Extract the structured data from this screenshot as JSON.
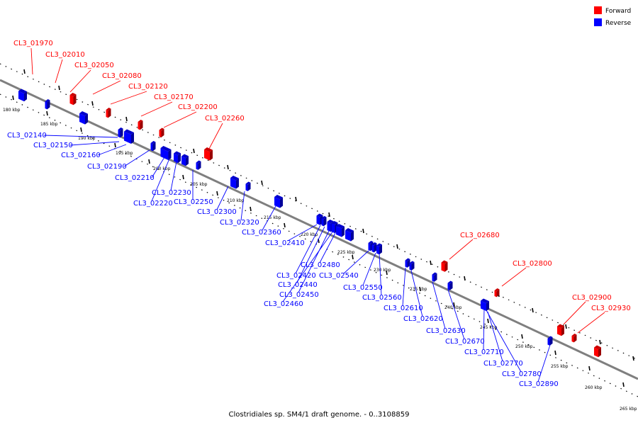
{
  "caption": "Clostridiales sp. SM4/1 draft genome. - 0..3108859",
  "legend": [
    {
      "label": "Forward",
      "color": "#ff0000"
    },
    {
      "label": "Reverse",
      "color": "#0000ff"
    }
  ],
  "colors": {
    "forward": "#ff0000",
    "reverse": "#0000ff",
    "backbone": "#7f7f7f"
  },
  "scale_labels": [
    "180 kbp",
    "185 kbp",
    "190 kbp",
    "195 kbp",
    "200 kbp",
    "205 kbp",
    "210 kbp",
    "215 kbp",
    "220 kbp",
    "225 kbp",
    "230 kbp",
    "235 kbp",
    "240 kbp",
    "245 kbp",
    "250 kbp",
    "255 kbp",
    "260 kbp",
    "265 kbp"
  ],
  "forward_genes": [
    "CL3_01970",
    "CL3_02010",
    "CL3_02050",
    "CL3_02080",
    "CL3_02120",
    "CL3_02170",
    "CL3_02200",
    "CL3_02260",
    "CL3_02680",
    "CL3_02800",
    "CL3_02900",
    "CL3_02930"
  ],
  "reverse_genes": [
    "CL3_02140",
    "CL3_02150",
    "CL3_02160",
    "CL3_02190",
    "CL3_02210",
    "CL3_02230",
    "CL3_02220",
    "CL3_02250",
    "CL3_02300",
    "CL3_02320",
    "CL3_02360",
    "CL3_02410",
    "CL3_02480",
    "CL3_02420",
    "CL3_02440",
    "CL3_02450",
    "CL3_02460",
    "CL3_02540",
    "CL3_02550",
    "CL3_02560",
    "CL3_02610",
    "CL3_02620",
    "CL3_02630",
    "CL3_02670",
    "CL3_02710",
    "CL3_02770",
    "CL3_02780",
    "CL3_02890"
  ]
}
